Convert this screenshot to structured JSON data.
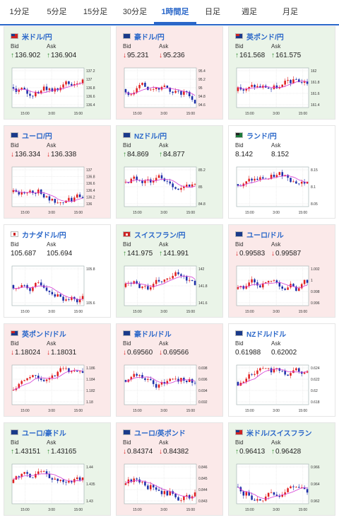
{
  "tabs": [
    {
      "label": "1分足",
      "active": false
    },
    {
      "label": "5分足",
      "active": false
    },
    {
      "label": "15分足",
      "active": false
    },
    {
      "label": "30分足",
      "active": false
    },
    {
      "label": "1時間足",
      "active": true
    },
    {
      "label": "日足",
      "active": false
    },
    {
      "label": "週足",
      "active": false
    },
    {
      "label": "月足",
      "active": false
    }
  ],
  "labels": {
    "bid": "Bid",
    "ask": "Ask"
  },
  "colors": {
    "accent": "#2a67c9",
    "up_arrow": "#2e8b2e",
    "down_arrow": "#d22222",
    "card_up_bg": "#eaf4e8",
    "card_down_bg": "#fbe9e9",
    "candle_up": "#e02020",
    "candle_down": "#1c2ea8",
    "moving_average": "#d43ad4"
  },
  "cards": [
    {
      "pair": "米ドル/円",
      "flag": "us-flag-icon",
      "trend": "up",
      "bid_dir": "up",
      "bid": "136.902",
      "ask_dir": "up",
      "ask": "136.904",
      "chart": {
        "y_ticks": [
          "137.2",
          "137",
          "136.8",
          "136.6",
          "136.4"
        ],
        "x_ticks": [
          "15:00",
          "3:00",
          "15:00"
        ]
      }
    },
    {
      "pair": "豪ドル/円",
      "flag": "au-flag-icon",
      "trend": "down",
      "bid_dir": "down",
      "bid": "95.231",
      "ask_dir": "down",
      "ask": "95.236",
      "chart": {
        "y_ticks": [
          "95.4",
          "95.2",
          "95",
          "94.8",
          "94.6"
        ],
        "x_ticks": [
          "15:00",
          "3:00",
          "15:00"
        ]
      }
    },
    {
      "pair": "英ポンド/円",
      "flag": "uk-flag-icon",
      "trend": "up",
      "bid_dir": "up",
      "bid": "161.568",
      "ask_dir": "up",
      "ask": "161.575",
      "chart": {
        "y_ticks": [
          "162",
          "161.8",
          "161.6",
          "161.4"
        ],
        "x_ticks": [
          "15:00",
          "3:00",
          "15:00"
        ]
      }
    },
    {
      "pair": "ユーロ/円",
      "flag": "eu-flag-icon",
      "trend": "down",
      "bid_dir": "down",
      "bid": "136.334",
      "ask_dir": "down",
      "ask": "136.338",
      "chart": {
        "y_ticks": [
          "137",
          "136.8",
          "136.6",
          "136.4",
          "136.2",
          "136"
        ],
        "x_ticks": [
          "15:00",
          "3:00",
          "15:00"
        ]
      }
    },
    {
      "pair": "NZドル/円",
      "flag": "nz-flag-icon",
      "trend": "up",
      "bid_dir": "up",
      "bid": "84.869",
      "ask_dir": "up",
      "ask": "84.877",
      "chart": {
        "y_ticks": [
          "85.2",
          "85",
          "84.8"
        ],
        "x_ticks": [
          "15:00",
          "3:00",
          "15:00"
        ]
      }
    },
    {
      "pair": "ランド/円",
      "flag": "za-flag-icon",
      "trend": "flat",
      "bid_dir": "none",
      "bid": "8.142",
      "ask_dir": "none",
      "ask": "8.152",
      "chart": {
        "y_ticks": [
          "8.15",
          "8.1",
          "8.05"
        ],
        "x_ticks": [
          "15:00",
          "3:00",
          "15:00"
        ]
      }
    },
    {
      "pair": "カナダドル/円",
      "flag": "ca-flag-icon",
      "trend": "flat",
      "bid_dir": "none",
      "bid": "105.687",
      "ask_dir": "none",
      "ask": "105.694",
      "chart": {
        "y_ticks": [
          "105.8",
          "105.6"
        ],
        "x_ticks": [
          "15:00",
          "3:00",
          "15:00"
        ]
      }
    },
    {
      "pair": "スイスフラン/円",
      "flag": "ch-flag-icon",
      "trend": "up",
      "bid_dir": "up",
      "bid": "141.975",
      "ask_dir": "up",
      "ask": "141.991",
      "chart": {
        "y_ticks": [
          "142",
          "141.8",
          "141.6"
        ],
        "x_ticks": [
          "15:00",
          "3:00",
          "15:00"
        ]
      }
    },
    {
      "pair": "ユーロ/ドル",
      "flag": "eu-flag-icon",
      "trend": "down",
      "bid_dir": "down",
      "bid": "0.99583",
      "ask_dir": "down",
      "ask": "0.99587",
      "chart": {
        "y_ticks": [
          "1.002",
          "1",
          "0.998",
          "0.996"
        ],
        "x_ticks": [
          "15:00",
          "3:00",
          "15:00"
        ]
      }
    },
    {
      "pair": "英ポンド/ドル",
      "flag": "uk-flag-icon",
      "trend": "down",
      "bid_dir": "down",
      "bid": "1.18024",
      "ask_dir": "down",
      "ask": "1.18031",
      "chart": {
        "y_ticks": [
          "1.186",
          "1.184",
          "1.182",
          "1.18"
        ],
        "x_ticks": [
          "15:00",
          "3:00",
          "15:00"
        ]
      }
    },
    {
      "pair": "豪ドル/ドル",
      "flag": "au-flag-icon",
      "trend": "down",
      "bid_dir": "down",
      "bid": "0.69560",
      "ask_dir": "down",
      "ask": "0.69566",
      "chart": {
        "y_ticks": [
          "0.698",
          "0.696",
          "0.694",
          "0.692"
        ],
        "x_ticks": [
          "15:00",
          "3:00",
          "15:00"
        ]
      }
    },
    {
      "pair": "NZドル/ドル",
      "flag": "nz-flag-icon",
      "trend": "flat",
      "bid_dir": "none",
      "bid": "0.61988",
      "ask_dir": "none",
      "ask": "0.62002",
      "chart": {
        "y_ticks": [
          "0.624",
          "0.622",
          "0.62",
          "0.618"
        ],
        "x_ticks": [
          "15:00",
          "3:00",
          "15:00"
        ]
      }
    },
    {
      "pair": "ユーロ/豪ドル",
      "flag": "eu-flag-icon",
      "trend": "up",
      "bid_dir": "up",
      "bid": "1.43151",
      "ask_dir": "up",
      "ask": "1.43165",
      "chart": {
        "y_ticks": [
          "1.44",
          "1.435",
          "1.43"
        ],
        "x_ticks": [
          "15:00",
          "3:00",
          "15:00"
        ]
      }
    },
    {
      "pair": "ユーロ/英ポンド",
      "flag": "eu-flag-icon",
      "trend": "down",
      "bid_dir": "down",
      "bid": "0.84374",
      "ask_dir": "down",
      "ask": "0.84382",
      "chart": {
        "y_ticks": [
          "0.846",
          "0.845",
          "0.844",
          "0.843"
        ],
        "x_ticks": [
          "15:00",
          "3:00",
          "15:00"
        ]
      }
    },
    {
      "pair": "米ドル/スイスフラン",
      "flag": "us-flag-icon",
      "trend": "up",
      "bid_dir": "up",
      "bid": "0.96413",
      "ask_dir": "up",
      "ask": "0.96428",
      "chart": {
        "y_ticks": [
          "0.966",
          "0.964",
          "0.962"
        ],
        "x_ticks": [
          "15:00",
          "3:00",
          "15:00"
        ]
      }
    }
  ]
}
